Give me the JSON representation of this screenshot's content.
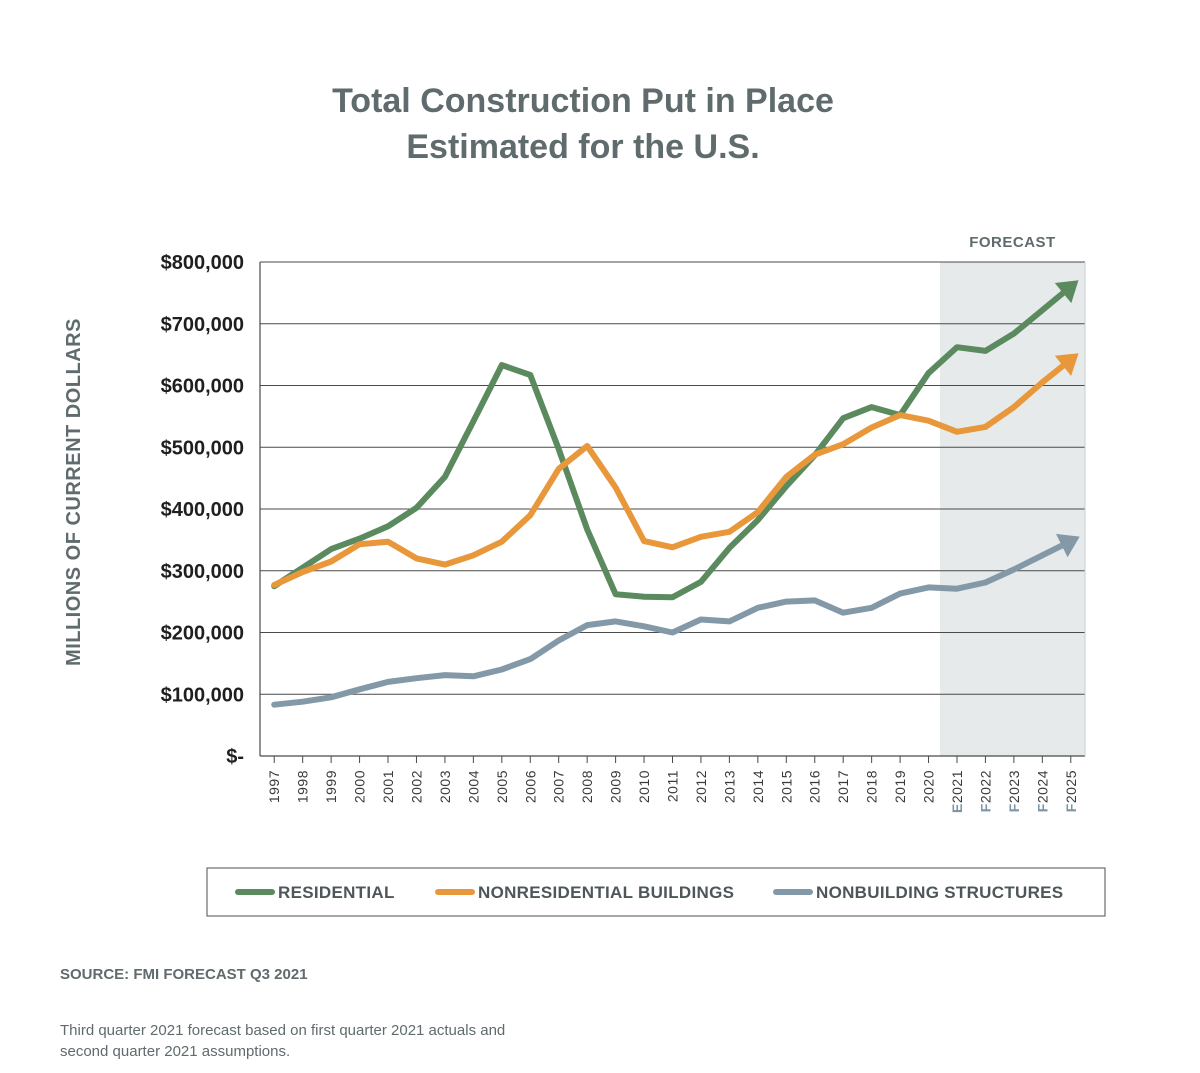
{
  "chart_data": {
    "type": "line",
    "title_lines": [
      "Total Construction Put in Place",
      "Estimated for the U.S."
    ],
    "ylabel": "MILLIONS OF CURRENT DOLLARS",
    "ylim": [
      0,
      800000
    ],
    "yticks": [
      0,
      100000,
      200000,
      300000,
      400000,
      500000,
      600000,
      700000,
      800000
    ],
    "ytick_labels": [
      "$-",
      "$100,000",
      "$200,000",
      "$300,000",
      "$400,000",
      "$500,000",
      "$600,000",
      "$700,000",
      "$800,000"
    ],
    "categories": [
      "1997",
      "1998",
      "1999",
      "2000",
      "2001",
      "2002",
      "2003",
      "2004",
      "2005",
      "2006",
      "2007",
      "2008",
      "2009",
      "2010",
      "2011",
      "2012",
      "2013",
      "2014",
      "2015",
      "2016",
      "2017",
      "2018",
      "2019",
      "2020",
      "2021",
      "2022",
      "2023",
      "2024",
      "2025"
    ],
    "category_suffix": [
      "",
      "",
      "",
      "",
      "",
      "",
      "",
      "",
      "",
      "",
      "",
      "",
      "",
      "",
      "",
      "",
      "",
      "",
      "",
      "",
      "",
      "",
      "",
      "",
      "E",
      "F",
      "F",
      "F",
      "F"
    ],
    "forecast_label": "FORECAST",
    "forecast_start": "2021",
    "grid": true,
    "legend_position": "bottom",
    "series": [
      {
        "name": "RESIDENTIAL",
        "color": "#5b8a5f",
        "values": [
          275000,
          305000,
          335000,
          352000,
          372000,
          402000,
          452000,
          542000,
          633000,
          617000,
          497000,
          367000,
          262000,
          258000,
          257000,
          282000,
          337000,
          382000,
          437000,
          487000,
          547000,
          565000,
          552000,
          620000,
          662000,
          656000,
          684000,
          722000,
          760000
        ]
      },
      {
        "name": "NONRESIDENTIAL BUILDINGS",
        "color": "#e8973a",
        "values": [
          277000,
          298000,
          315000,
          343000,
          347000,
          320000,
          310000,
          325000,
          347000,
          390000,
          465000,
          502000,
          435000,
          348000,
          338000,
          355000,
          363000,
          395000,
          452000,
          488000,
          505000,
          532000,
          552000,
          543000,
          525000,
          533000,
          565000,
          605000,
          642000
        ]
      },
      {
        "name": "NONBUILDING STRUCTURES",
        "color": "#8499a8",
        "values": [
          83000,
          88000,
          95000,
          108000,
          120000,
          126000,
          131000,
          129000,
          140000,
          157000,
          187000,
          212000,
          218000,
          210000,
          200000,
          221000,
          218000,
          240000,
          250000,
          252000,
          232000,
          240000,
          263000,
          273000,
          271000,
          281000,
          302000,
          325000,
          348000
        ]
      }
    ],
    "source": "SOURCE: FMI FORECAST Q3 2021",
    "note": "Third quarter 2021 forecast based on first quarter 2021 actuals and second quarter 2021 assumptions."
  }
}
